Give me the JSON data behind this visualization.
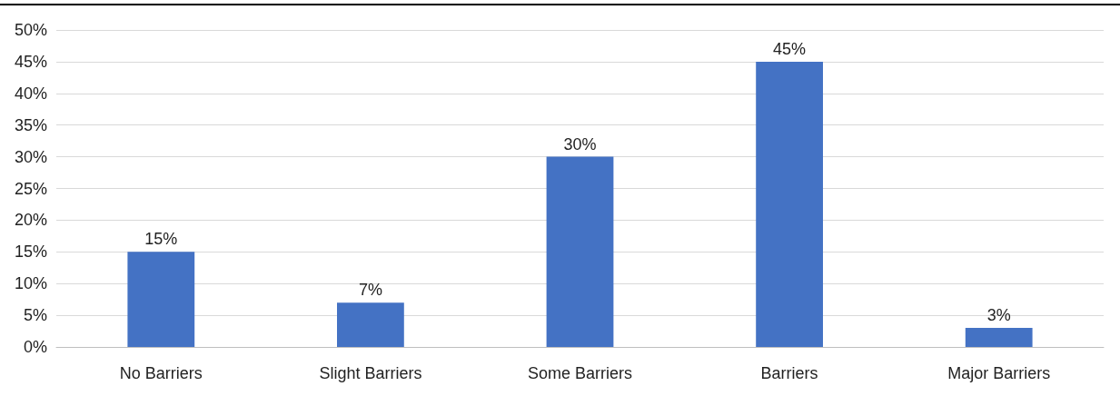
{
  "chart_data": {
    "type": "bar",
    "categories": [
      "No Barriers",
      "Slight Barriers",
      "Some Barriers",
      "Barriers",
      "Major Barriers"
    ],
    "values": [
      15,
      7,
      30,
      45,
      3
    ],
    "color": "#4472c4",
    "ylim": [
      0,
      50
    ],
    "yticks": [
      {
        "value": 0,
        "label": "0%"
      },
      {
        "value": 5,
        "label": "5%"
      },
      {
        "value": 10,
        "label": "10%"
      },
      {
        "value": 15,
        "label": "15%"
      },
      {
        "value": 20,
        "label": "20%"
      },
      {
        "value": 25,
        "label": "25%"
      },
      {
        "value": 30,
        "label": "30%"
      },
      {
        "value": 35,
        "label": "35%"
      },
      {
        "value": 40,
        "label": "40%"
      },
      {
        "value": 45,
        "label": "45%"
      },
      {
        "value": 50,
        "label": "50%"
      }
    ],
    "value_labels": [
      "15%",
      "7%",
      "30%",
      "45%",
      "3%"
    ],
    "grid": "y"
  }
}
